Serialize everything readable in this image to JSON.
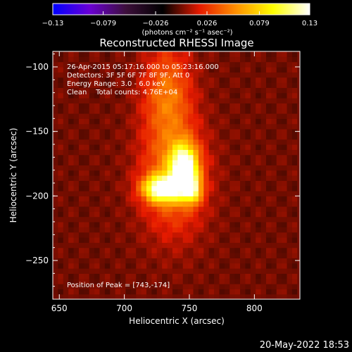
{
  "chart_data": {
    "type": "heatmap",
    "title": "Reconstructed RHESSI Image",
    "xlabel": "Heliocentric X (arcsec)",
    "ylabel": "Heliocentric Y (arcsec)",
    "xlim": [
      645,
      835
    ],
    "ylim": [
      -280,
      -88
    ],
    "x_ticks": [
      650,
      700,
      750,
      800
    ],
    "y_ticks": [
      -100,
      -150,
      -200,
      -250
    ],
    "x_tick_labels": [
      "650",
      "700",
      "750",
      "800"
    ],
    "y_tick_labels": [
      "−100",
      "−150",
      "−200",
      "−250"
    ],
    "colorbar": {
      "range": [
        -0.13,
        0.13
      ],
      "tick_values": [
        -0.13,
        -0.079,
        -0.026,
        0.026,
        0.079,
        0.13
      ],
      "tick_labels": [
        "−0.13",
        "−0.079",
        "−0.026",
        "0.026",
        "0.079",
        "0.13"
      ],
      "unit_label": "(photons cm⁻² s⁻¹ asec⁻²)",
      "colormap": [
        "#0000ff",
        "#6a00d4",
        "#3c0f3a",
        "#000000",
        "#e61a00",
        "#ff9100",
        "#ffff00",
        "#ffffff"
      ]
    },
    "annotations": {
      "time_range": "26-Apr-2015 05:17:16.000 to 05:23:16.000",
      "detectors": "Detectors: 3F 5F 6F 7F 8F 9F, Att 0",
      "energy": "Energy Range: 3.0 - 6.0 keV",
      "clean": "Clean    Total counts: 4.76E+04",
      "peak": "Position of Peak = [743,-174]"
    },
    "peak_position": [
      743,
      -174
    ],
    "total_counts": 47600,
    "energy_range_kev": [
      3.0,
      6.0
    ],
    "source_components": [
      {
        "x": 746,
        "y": -178,
        "sx": 7,
        "sy": 12,
        "amp": 0.13
      },
      {
        "x": 729,
        "y": -194,
        "sx": 10,
        "sy": 7,
        "amp": 0.12
      },
      {
        "x": 752,
        "y": -195,
        "sx": 5,
        "sy": 7,
        "amp": 0.08
      },
      {
        "x": 738,
        "y": -185,
        "sx": 17,
        "sy": 30,
        "amp": 0.05
      },
      {
        "x": 733,
        "y": -120,
        "sx": 13,
        "sy": 26,
        "amp": 0.045
      }
    ]
  },
  "footer": {
    "date_stamp": "20-May-2022 18:53"
  }
}
